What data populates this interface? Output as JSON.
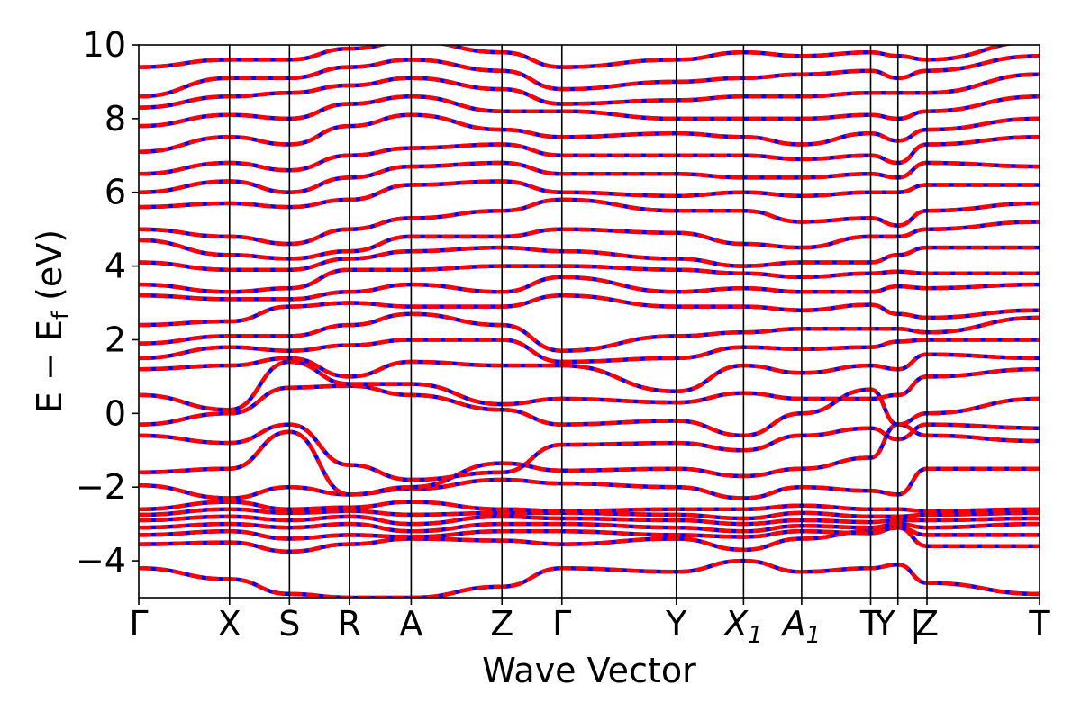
{
  "chart_data": {
    "type": "line",
    "title": "",
    "xlabel": "Wave Vector",
    "ylabel": "E − E",
    "ylabel_sub": "f",
    "ylabel_unit": " (eV)",
    "ylim": [
      -5,
      10
    ],
    "y_ticks": [
      {
        "value": -4,
        "label": "−4"
      },
      {
        "value": -2,
        "label": "−2"
      },
      {
        "value": 0,
        "label": "0"
      },
      {
        "value": 2,
        "label": "2"
      },
      {
        "value": 4,
        "label": "4"
      },
      {
        "value": 6,
        "label": "6"
      },
      {
        "value": 8,
        "label": "8"
      },
      {
        "value": 10,
        "label": "10"
      }
    ],
    "kpoints": [
      {
        "label": "Γ",
        "x": 0.0
      },
      {
        "label": "X",
        "x": 0.5
      },
      {
        "label": "S",
        "x": 0.83
      },
      {
        "label": "R",
        "x": 1.16
      },
      {
        "label": "A",
        "x": 1.5
      },
      {
        "label": "Z",
        "x": 2.0
      },
      {
        "label": "Γ",
        "x": 2.33
      },
      {
        "label": "Y",
        "x": 2.96
      },
      {
        "label": "X",
        "sub": "1",
        "x": 3.33
      },
      {
        "label": "A",
        "sub": "1",
        "x": 3.65
      },
      {
        "label": "T",
        "x": 4.03
      },
      {
        "label": "Y",
        "x": 4.18,
        "merged_with_next": true,
        "separator": "|"
      },
      {
        "label": "Z",
        "x": 4.34
      },
      {
        "label": "T",
        "x": 4.96
      }
    ],
    "xlim": [
      0,
      4.96
    ],
    "line_colors": {
      "primary": "#ff0000",
      "secondary": "#0000ff"
    },
    "line_style": "red solid overlaid by blue dashes",
    "series": [
      {
        "values": [
          -4.2,
          -4.5,
          -4.9,
          -5.0,
          -5.0,
          -4.7,
          -4.2,
          -4.3,
          -4.0,
          -4.3,
          -4.2,
          -4.1,
          -4.6,
          -4.9,
          -5.0
        ]
      },
      {
        "values": [
          -3.55,
          -3.5,
          -3.75,
          -3.55,
          -3.4,
          -3.45,
          -3.55,
          -3.4,
          -3.7,
          -3.4,
          -3.2,
          -3.1,
          -3.6,
          -3.6,
          -3.2
        ]
      },
      {
        "values": [
          -3.3,
          -3.2,
          -3.4,
          -3.3,
          -3.35,
          -3.2,
          -3.2,
          -3.3,
          -3.35,
          -3.2,
          -3.25,
          -3.1,
          -3.3,
          -3.3,
          -3.15
        ]
      },
      {
        "values": [
          -3.1,
          -3.0,
          -3.1,
          -3.0,
          -3.2,
          -3.0,
          -3.0,
          -3.1,
          -3.2,
          -3.05,
          -3.1,
          -3.0,
          -3.1,
          -3.0,
          -3.0
        ]
      },
      {
        "values": [
          -2.9,
          -2.8,
          -2.9,
          -2.8,
          -3.0,
          -2.8,
          -2.85,
          -2.9,
          -3.0,
          -2.9,
          -2.95,
          -2.9,
          -2.9,
          -2.85,
          -2.85
        ]
      },
      {
        "values": [
          -2.75,
          -2.6,
          -2.7,
          -2.65,
          -2.75,
          -2.7,
          -2.7,
          -2.75,
          -2.85,
          -2.7,
          -2.8,
          -2.8,
          -2.75,
          -2.7,
          -2.7
        ]
      },
      {
        "values": [
          -2.6,
          -2.4,
          -2.6,
          -2.55,
          -2.4,
          -2.6,
          -2.65,
          -2.6,
          -2.6,
          -2.5,
          -2.6,
          -2.6,
          -2.65,
          -2.6,
          -2.6
        ]
      },
      {
        "values": [
          -1.95,
          -2.3,
          -2.0,
          -2.2,
          -2.05,
          -1.8,
          -1.9,
          -2.0,
          -2.3,
          -2.0,
          -2.1,
          -2.2,
          -1.5,
          -1.5,
          -1.5
        ]
      },
      {
        "values": [
          -1.6,
          -1.5,
          -0.5,
          -2.2,
          -2.0,
          -1.35,
          -1.55,
          -1.5,
          -1.7,
          -1.5,
          -1.2,
          -0.3,
          -0.6,
          -0.75,
          -1.0
        ]
      },
      {
        "values": [
          -0.6,
          -0.8,
          -0.3,
          -1.4,
          -1.8,
          -1.6,
          -0.85,
          -0.8,
          -1.0,
          -0.6,
          -0.4,
          -0.7,
          -0.3,
          -0.4,
          -0.35
        ]
      },
      {
        "values": [
          -0.3,
          0.0,
          0.7,
          0.75,
          0.5,
          0.1,
          -0.3,
          -0.2,
          -0.6,
          0.0,
          0.65,
          -0.3,
          0.0,
          0.4,
          0.0
        ]
      },
      {
        "values": [
          0.5,
          0.1,
          1.4,
          0.8,
          0.8,
          0.25,
          0.4,
          0.3,
          0.55,
          0.4,
          0.4,
          0.5,
          1.0,
          1.2,
          1.5
        ]
      },
      {
        "values": [
          1.2,
          1.3,
          1.5,
          1.0,
          1.4,
          1.3,
          1.3,
          0.6,
          1.3,
          1.1,
          1.3,
          1.2,
          1.6,
          1.5,
          1.95
        ]
      },
      {
        "values": [
          1.5,
          1.8,
          1.7,
          1.85,
          2.0,
          2.0,
          1.4,
          1.5,
          1.8,
          1.75,
          1.8,
          1.95,
          2.0,
          2.0,
          2.25
        ]
      },
      {
        "values": [
          1.9,
          2.1,
          2.1,
          2.4,
          2.7,
          2.4,
          1.7,
          2.1,
          2.2,
          2.3,
          2.3,
          2.3,
          2.2,
          2.6,
          2.7
        ]
      },
      {
        "values": [
          2.4,
          2.5,
          2.9,
          3.0,
          2.9,
          2.9,
          3.2,
          2.9,
          2.9,
          2.8,
          2.95,
          2.7,
          2.6,
          2.8,
          3.1
        ]
      },
      {
        "values": [
          3.2,
          3.1,
          3.1,
          3.3,
          3.5,
          3.3,
          3.7,
          3.3,
          3.4,
          3.3,
          3.3,
          3.45,
          3.4,
          3.5,
          3.8
        ]
      },
      {
        "values": [
          3.5,
          3.3,
          3.4,
          3.9,
          3.9,
          4.0,
          4.0,
          3.9,
          3.8,
          3.7,
          3.8,
          3.85,
          3.8,
          3.8,
          4.5
        ]
      },
      {
        "values": [
          4.1,
          3.9,
          3.9,
          4.2,
          4.4,
          4.5,
          4.4,
          4.2,
          4.0,
          4.1,
          4.1,
          4.3,
          4.5,
          4.5,
          5.5
        ]
      },
      {
        "values": [
          4.7,
          4.3,
          4.2,
          4.4,
          4.8,
          4.8,
          5.0,
          4.9,
          4.6,
          4.5,
          4.8,
          4.8,
          5.0,
          5.2,
          6.2
        ]
      },
      {
        "values": [
          5.0,
          4.8,
          4.6,
          5.0,
          5.3,
          5.5,
          5.8,
          5.5,
          5.5,
          5.2,
          5.3,
          5.1,
          5.5,
          5.7,
          6.8
        ]
      },
      {
        "values": [
          5.6,
          5.7,
          5.6,
          5.8,
          6.2,
          6.3,
          6.0,
          5.9,
          6.0,
          5.9,
          6.0,
          6.0,
          6.2,
          6.2,
          7.6
        ]
      },
      {
        "values": [
          6.0,
          6.3,
          6.0,
          6.4,
          6.7,
          6.8,
          6.5,
          6.5,
          6.4,
          6.4,
          6.5,
          6.4,
          6.8,
          6.7,
          8.0
        ]
      },
      {
        "values": [
          6.5,
          6.8,
          6.6,
          7.0,
          7.2,
          7.3,
          7.0,
          7.0,
          7.0,
          6.9,
          7.0,
          6.8,
          7.3,
          7.5,
          8.6
        ]
      },
      {
        "values": [
          7.1,
          7.5,
          7.3,
          7.8,
          8.1,
          7.7,
          7.5,
          7.6,
          7.5,
          7.3,
          7.6,
          7.4,
          7.7,
          8.0,
          9.0
        ]
      },
      {
        "values": [
          7.8,
          8.1,
          8.0,
          8.4,
          8.6,
          8.2,
          8.2,
          8.0,
          8.0,
          8.0,
          8.1,
          8.0,
          8.2,
          8.6,
          9.6
        ]
      },
      {
        "values": [
          8.3,
          8.6,
          8.7,
          8.9,
          9.1,
          8.8,
          8.4,
          8.5,
          8.6,
          8.6,
          8.7,
          8.7,
          8.7,
          9.2,
          10.0
        ]
      },
      {
        "values": [
          8.6,
          9.1,
          9.1,
          9.4,
          9.6,
          9.3,
          8.8,
          9.0,
          9.1,
          9.2,
          9.3,
          9.1,
          9.3,
          9.7,
          10.2
        ]
      },
      {
        "values": [
          9.4,
          9.6,
          9.6,
          9.9,
          10.1,
          9.8,
          9.4,
          9.6,
          9.8,
          9.7,
          9.8,
          9.7,
          9.6,
          10.1,
          10.4
        ]
      }
    ]
  }
}
